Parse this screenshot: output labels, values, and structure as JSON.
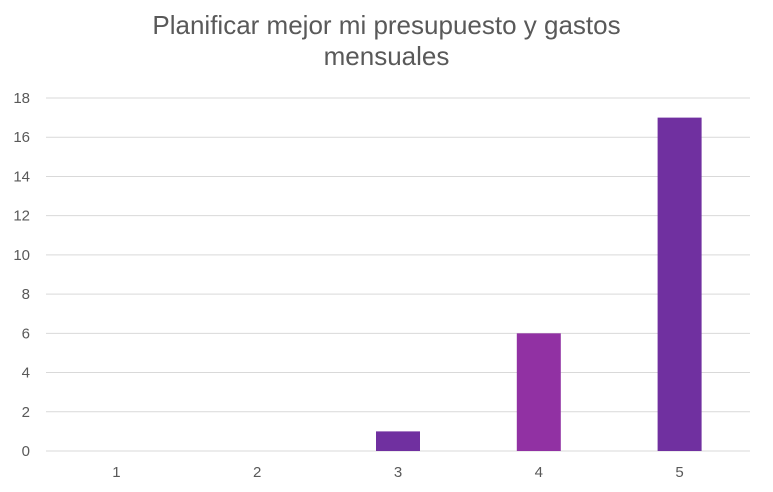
{
  "chart_data": {
    "type": "bar",
    "title_lines": [
      "Planificar mejor mi presupuesto y gastos",
      "mensuales"
    ],
    "categories": [
      "1",
      "2",
      "3",
      "4",
      "5"
    ],
    "values": [
      0,
      0,
      1,
      6,
      17
    ],
    "bar_colors": [
      "#7030A0",
      "#7030A0",
      "#7030A0",
      "#9131A3",
      "#7030A0"
    ],
    "ylim": [
      0,
      18
    ],
    "yticks": [
      0,
      2,
      4,
      6,
      8,
      10,
      12,
      14,
      16,
      18
    ],
    "grid": true,
    "gridline_color": "#D9D9D9",
    "text_color": "#595959"
  }
}
